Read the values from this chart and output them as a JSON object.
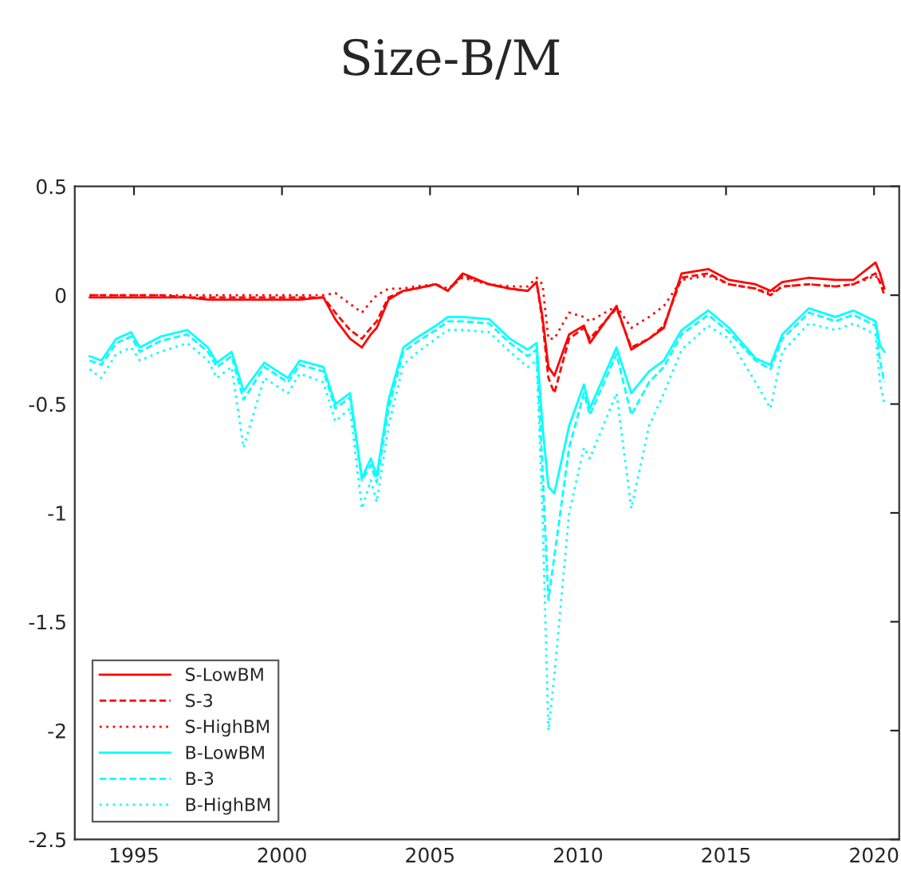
{
  "chart_data": {
    "type": "line",
    "title": "Size-B/M",
    "x": [
      1993.5,
      1993.9,
      1994.4,
      1994.9,
      1995.2,
      1995.9,
      1996.8,
      1997.5,
      1997.8,
      1998.3,
      1998.7,
      1999.4,
      2000.2,
      2000.6,
      2001.4,
      2001.8,
      2002.3,
      2002.7,
      2003.0,
      2003.2,
      2003.6,
      2004.1,
      2004.5,
      2005.2,
      2005.6,
      2006.1,
      2007.0,
      2007.7,
      2008.3,
      2008.6,
      2008.8,
      2009.0,
      2009.2,
      2009.7,
      2010.2,
      2010.4,
      2011.3,
      2011.8,
      2012.4,
      2012.9,
      2013.5,
      2014.4,
      2015.1,
      2016.0,
      2016.5,
      2016.9,
      2017.8,
      2018.7,
      2019.3,
      2020.05,
      2020.2,
      2020.35
    ],
    "series": [
      {
        "name": "S-LowBM",
        "color": "#ff0000",
        "line_style": "solid",
        "values": [
          -0.01,
          -0.01,
          -0.01,
          -0.01,
          -0.01,
          -0.01,
          -0.01,
          -0.02,
          -0.02,
          -0.02,
          -0.02,
          -0.02,
          -0.02,
          -0.02,
          -0.01,
          -0.11,
          -0.2,
          -0.24,
          -0.18,
          -0.15,
          -0.02,
          0.02,
          0.03,
          0.05,
          0.02,
          0.1,
          0.05,
          0.03,
          0.02,
          0.06,
          -0.1,
          -0.33,
          -0.37,
          -0.18,
          -0.14,
          -0.22,
          -0.05,
          -0.25,
          -0.2,
          -0.15,
          0.1,
          0.12,
          0.07,
          0.05,
          0.02,
          0.06,
          0.08,
          0.07,
          0.07,
          0.15,
          0.1,
          0.03
        ]
      },
      {
        "name": "S-3",
        "color": "#ff0000",
        "line_style": "dashed",
        "values": [
          0.0,
          0.0,
          0.0,
          0.0,
          0.0,
          0.0,
          -0.01,
          -0.01,
          -0.01,
          -0.01,
          -0.01,
          -0.01,
          -0.01,
          -0.01,
          -0.01,
          -0.08,
          -0.16,
          -0.2,
          -0.15,
          -0.12,
          -0.01,
          0.02,
          0.03,
          0.05,
          0.02,
          0.09,
          0.05,
          0.03,
          0.02,
          0.06,
          -0.12,
          -0.38,
          -0.45,
          -0.2,
          -0.15,
          -0.2,
          -0.06,
          -0.24,
          -0.2,
          -0.14,
          0.08,
          0.1,
          0.05,
          0.03,
          0.0,
          0.04,
          0.05,
          0.04,
          0.05,
          0.1,
          0.06,
          0.0
        ]
      },
      {
        "name": "S-HighBM",
        "color": "#ff0000",
        "line_style": "dotted",
        "values": [
          0.0,
          0.0,
          0.0,
          0.0,
          0.0,
          0.0,
          0.0,
          0.0,
          0.0,
          0.0,
          0.0,
          0.0,
          0.0,
          0.0,
          0.0,
          0.01,
          -0.04,
          -0.08,
          -0.03,
          0.0,
          0.03,
          0.03,
          0.04,
          0.05,
          0.03,
          0.08,
          0.05,
          0.04,
          0.04,
          0.08,
          0.05,
          -0.2,
          -0.2,
          -0.08,
          -0.1,
          -0.12,
          -0.05,
          -0.15,
          -0.1,
          -0.05,
          0.07,
          0.09,
          0.05,
          0.03,
          0.01,
          0.04,
          0.05,
          0.04,
          0.05,
          0.09,
          0.06,
          0.02
        ]
      },
      {
        "name": "B-LowBM",
        "color": "#00ffff",
        "line_style": "solid",
        "values": [
          -0.28,
          -0.3,
          -0.2,
          -0.17,
          -0.24,
          -0.19,
          -0.16,
          -0.24,
          -0.31,
          -0.26,
          -0.44,
          -0.31,
          -0.38,
          -0.3,
          -0.33,
          -0.5,
          -0.45,
          -0.84,
          -0.75,
          -0.83,
          -0.48,
          -0.24,
          -0.2,
          -0.14,
          -0.1,
          -0.1,
          -0.11,
          -0.2,
          -0.25,
          -0.22,
          -0.6,
          -0.88,
          -0.91,
          -0.6,
          -0.41,
          -0.52,
          -0.24,
          -0.45,
          -0.35,
          -0.3,
          -0.16,
          -0.07,
          -0.15,
          -0.29,
          -0.32,
          -0.18,
          -0.06,
          -0.1,
          -0.07,
          -0.12,
          -0.23,
          -0.26
        ]
      },
      {
        "name": "B-3",
        "color": "#00ffff",
        "line_style": "dashed",
        "values": [
          -0.3,
          -0.32,
          -0.22,
          -0.19,
          -0.26,
          -0.21,
          -0.18,
          -0.26,
          -0.33,
          -0.28,
          -0.48,
          -0.33,
          -0.4,
          -0.32,
          -0.35,
          -0.52,
          -0.47,
          -0.85,
          -0.78,
          -0.86,
          -0.52,
          -0.26,
          -0.22,
          -0.16,
          -0.12,
          -0.12,
          -0.13,
          -0.22,
          -0.28,
          -0.25,
          -0.8,
          -1.4,
          -1.2,
          -0.7,
          -0.45,
          -0.55,
          -0.27,
          -0.55,
          -0.4,
          -0.33,
          -0.18,
          -0.09,
          -0.17,
          -0.3,
          -0.34,
          -0.2,
          -0.08,
          -0.12,
          -0.09,
          -0.14,
          -0.3,
          -0.4
        ]
      },
      {
        "name": "B-HighBM",
        "color": "#00ffff",
        "line_style": "dotted",
        "values": [
          -0.34,
          -0.38,
          -0.27,
          -0.24,
          -0.3,
          -0.26,
          -0.22,
          -0.3,
          -0.38,
          -0.33,
          -0.7,
          -0.38,
          -0.45,
          -0.36,
          -0.4,
          -0.58,
          -0.52,
          -0.98,
          -0.85,
          -0.95,
          -0.6,
          -0.32,
          -0.27,
          -0.2,
          -0.16,
          -0.16,
          -0.17,
          -0.26,
          -0.33,
          -0.3,
          -1.0,
          -2.0,
          -1.75,
          -1.0,
          -0.7,
          -0.75,
          -0.45,
          -0.98,
          -0.6,
          -0.45,
          -0.25,
          -0.14,
          -0.2,
          -0.4,
          -0.52,
          -0.26,
          -0.13,
          -0.16,
          -0.13,
          -0.18,
          -0.4,
          -0.5
        ]
      }
    ],
    "xlim": [
      1993.0,
      2020.85
    ],
    "ylim": [
      -2.5,
      0.5
    ],
    "xticks": [
      1995,
      2000,
      2005,
      2010,
      2015,
      2020
    ],
    "yticks": [
      -2.5,
      -2,
      -1.5,
      -1,
      -0.5,
      0,
      0.5
    ],
    "legend": "bottom left"
  }
}
